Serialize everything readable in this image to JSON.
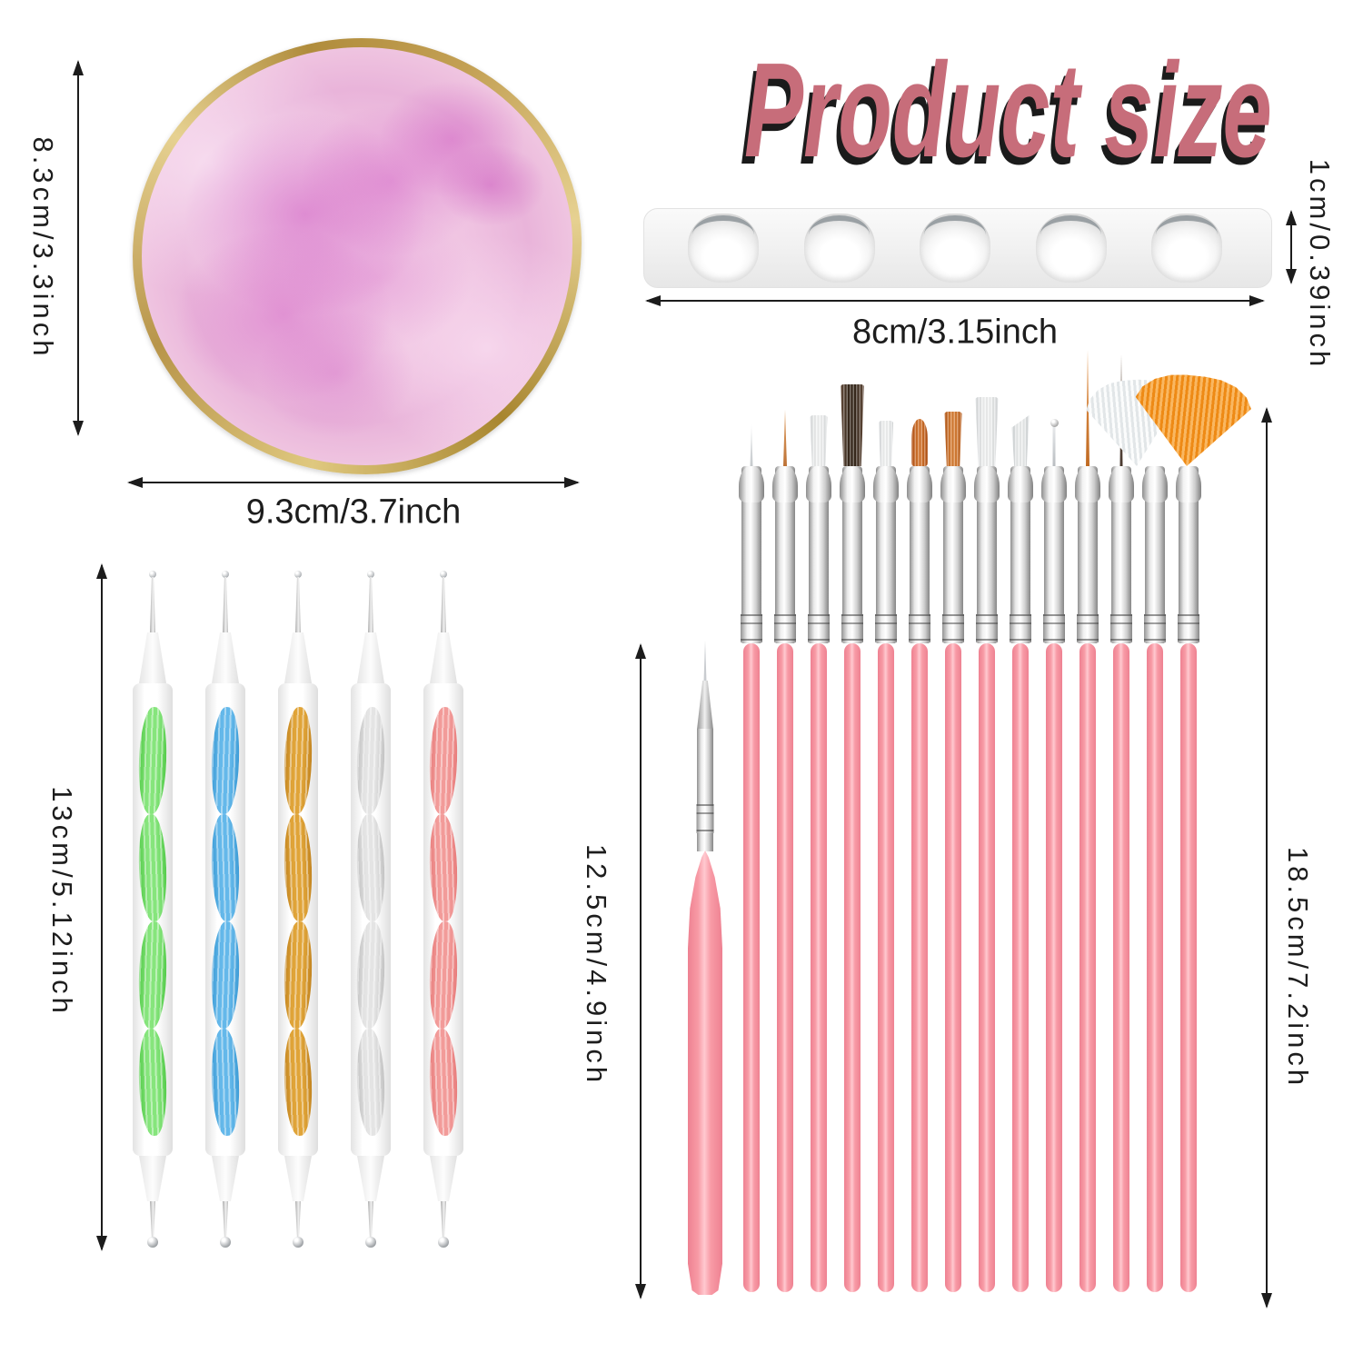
{
  "title": "Product size",
  "palette": {
    "height_label": "8.3cm/3.3inch",
    "width_label": "9.3cm/3.7inch"
  },
  "strip": {
    "height_label": "1cm/0.39inch",
    "width_label": "8cm/3.15inch",
    "bubble_count": 5
  },
  "pens": {
    "length_label": "13cm/5.12inch",
    "items": [
      {
        "name": "green",
        "color": "#86e57c",
        "dark": "#54cb4a"
      },
      {
        "name": "blue",
        "color": "#64b8ea",
        "dark": "#3d9cd6"
      },
      {
        "name": "gold",
        "color": "#e0a438",
        "dark": "#c28420"
      },
      {
        "name": "silver",
        "color": "#e4e4e4",
        "dark": "#c2c2c2"
      },
      {
        "name": "pink",
        "color": "#f29b99",
        "dark": "#e87d7c"
      }
    ]
  },
  "brushes": {
    "short_length_label": "12.5cm/4.9inch",
    "set_length_label": "18.5cm/7.2inch",
    "handle_colors": {
      "edge": "#ee8191",
      "mid": "#f89ba6",
      "highlight": "#ffc9d0"
    },
    "items": [
      {
        "name": "fine-liner",
        "type": "liner",
        "color": "#c6cacd",
        "color2": "#eceeef",
        "tip_w": 3,
        "tip_h": 46,
        "shift": 0,
        "tilt": 0
      },
      {
        "name": "detail-liner",
        "type": "liner",
        "color": "#bd7236",
        "color2": "#e2a368",
        "tip_w": 4,
        "tip_h": 62,
        "shift": 0,
        "tilt": 0
      },
      {
        "name": "flat-white",
        "type": "flat",
        "color": "#f3f4f4",
        "color2": "#d9dcde",
        "tip_w": 20,
        "tip_h": 56,
        "shift": 0,
        "tilt": 0
      },
      {
        "name": "flat-dark-brown",
        "type": "flat",
        "color": "#38291c",
        "color2": "#6a5140",
        "tip_w": 27,
        "tip_h": 90,
        "shift": 0,
        "tilt": 0
      },
      {
        "name": "flat-white-small",
        "type": "flat",
        "color": "#f3f4f4",
        "color2": "#d9dcde",
        "tip_w": 17,
        "tip_h": 50,
        "shift": 0,
        "tilt": 0
      },
      {
        "name": "oval-orange",
        "type": "oval",
        "color": "#d4742c",
        "color2": "#b24f12",
        "tip_w": 18,
        "tip_h": 52,
        "shift": 0,
        "tilt": 0
      },
      {
        "name": "flat-orange",
        "type": "flat",
        "color": "#d87e34",
        "color2": "#b25413",
        "tip_w": 20,
        "tip_h": 60,
        "shift": 0,
        "tilt": 0
      },
      {
        "name": "flat-white-wide",
        "type": "flat",
        "color": "#f2f3f3",
        "color2": "#d7dadc",
        "tip_w": 26,
        "tip_h": 76,
        "shift": 0,
        "tilt": 0
      },
      {
        "name": "angled-white",
        "type": "angled",
        "color": "#eef0f0",
        "color2": "#d3d7d9",
        "tip_w": 19,
        "tip_h": 56,
        "shift": 0,
        "tilt": 0
      },
      {
        "name": "dotting-tip",
        "type": "dotter",
        "color": "#b9bdc1",
        "color2": "#e8eaec",
        "tip_w": 3,
        "tip_h": 44,
        "shift": 0,
        "tilt": 0
      },
      {
        "name": "long-liner-orange",
        "type": "liner",
        "color": "#c06a22",
        "color2": "#e59a55",
        "tip_w": 4,
        "tip_h": 128,
        "shift": 0,
        "tilt": 0
      },
      {
        "name": "long-liner-dark",
        "type": "liner",
        "color": "#4a3a30",
        "color2": "#7a675a",
        "tip_w": 3,
        "tip_h": 123,
        "shift": 0,
        "tilt": 0
      },
      {
        "name": "fan-white",
        "type": "fan",
        "color": "#e2e6e8",
        "color2": "#fbfcfc",
        "tip_w": 100,
        "tip_h": 95,
        "shift": -20,
        "tilt": -5
      },
      {
        "name": "fan-orange",
        "type": "fan",
        "color": "#ee8a15",
        "color2": "#f9b761",
        "tip_w": 128,
        "tip_h": 100,
        "shift": -2,
        "tilt": 6
      }
    ]
  },
  "colors": {
    "title": "#c76d7a",
    "title_shadow": "#1b1b1b",
    "arrow": "#1c1c1c",
    "palette_rim_gold": "#c3a054",
    "palette_pink": "#efc2e1",
    "palette_magenta": "#cd55c0",
    "strip_gray": "#f0f0f0"
  }
}
